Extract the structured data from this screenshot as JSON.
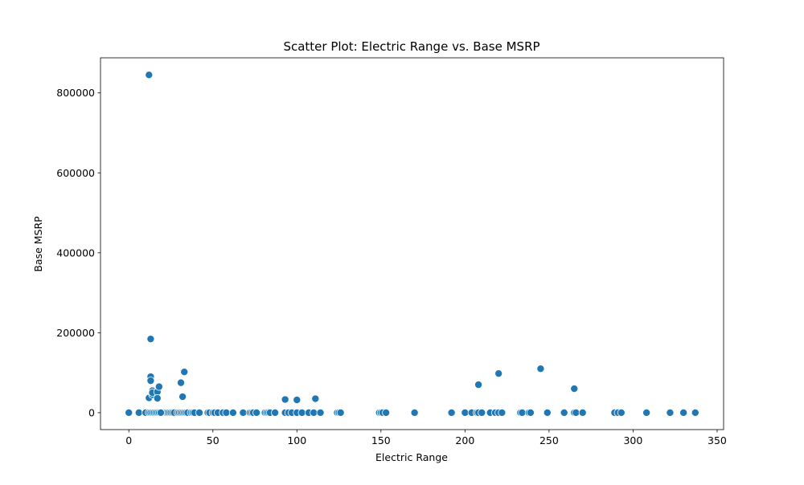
{
  "chart_data": {
    "type": "scatter",
    "title": "Scatter Plot: Electric Range vs. Base MSRP",
    "xlabel": "Electric Range",
    "ylabel": "Base MSRP",
    "xlim": [
      -16.85,
      353.85
    ],
    "ylim": [
      -42275,
      887775
    ],
    "x_ticks": [
      0,
      50,
      100,
      150,
      200,
      250,
      300,
      350
    ],
    "x_tick_labels": [
      "0",
      "50",
      "100",
      "150",
      "200",
      "250",
      "300",
      "350"
    ],
    "y_ticks": [
      0,
      200000,
      400000,
      600000,
      800000
    ],
    "y_tick_labels": [
      "0",
      "200000",
      "400000",
      "600000",
      "800000"
    ],
    "grid": false,
    "marker_color": "#1f77b4",
    "marker_edge_color": "#ffffff",
    "series": [
      {
        "name": "",
        "x": [
          0,
          6,
          10,
          12,
          13,
          14,
          15,
          16,
          17,
          18,
          19,
          20,
          21,
          22,
          23,
          24,
          25,
          26,
          27,
          29,
          30,
          31,
          32,
          33,
          34,
          35,
          37,
          38,
          39,
          42,
          47,
          48,
          50,
          51,
          53,
          56,
          58,
          62,
          68,
          72,
          73,
          74,
          76,
          81,
          82,
          83,
          84,
          87,
          93,
          95,
          97,
          100,
          103,
          107,
          110,
          114,
          124,
          125,
          126,
          149,
          150,
          151,
          153,
          170,
          192,
          200,
          204,
          207,
          208,
          210,
          215,
          218,
          220,
          222,
          233,
          234,
          238,
          239,
          249,
          259,
          265,
          266,
          270,
          289,
          291,
          293,
          308,
          322,
          330,
          337,
          12,
          12,
          13,
          13,
          13,
          14,
          14,
          14,
          17,
          17,
          18,
          19,
          31,
          32,
          33,
          93,
          100,
          111,
          208,
          220,
          245,
          265
        ],
        "y": [
          0,
          0,
          0,
          0,
          0,
          0,
          0,
          0,
          0,
          0,
          0,
          0,
          0,
          0,
          0,
          0,
          0,
          0,
          0,
          0,
          0,
          0,
          0,
          0,
          0,
          0,
          0,
          0,
          0,
          0,
          0,
          0,
          0,
          0,
          0,
          0,
          0,
          0,
          0,
          0,
          0,
          0,
          0,
          0,
          0,
          0,
          0,
          0,
          0,
          0,
          0,
          0,
          0,
          0,
          0,
          0,
          0,
          0,
          0,
          0,
          0,
          0,
          0,
          0,
          0,
          0,
          0,
          0,
          0,
          0,
          0,
          0,
          0,
          0,
          0,
          0,
          0,
          0,
          0,
          0,
          0,
          0,
          0,
          0,
          0,
          0,
          0,
          0,
          0,
          0,
          845000,
          37000,
          184400,
          90000,
          80000,
          55000,
          45000,
          50000,
          52000,
          36000,
          65000,
          0,
          75000,
          40000,
          102000,
          33000,
          32000,
          35000,
          70000,
          98000,
          110000,
          60000
        ]
      }
    ]
  }
}
